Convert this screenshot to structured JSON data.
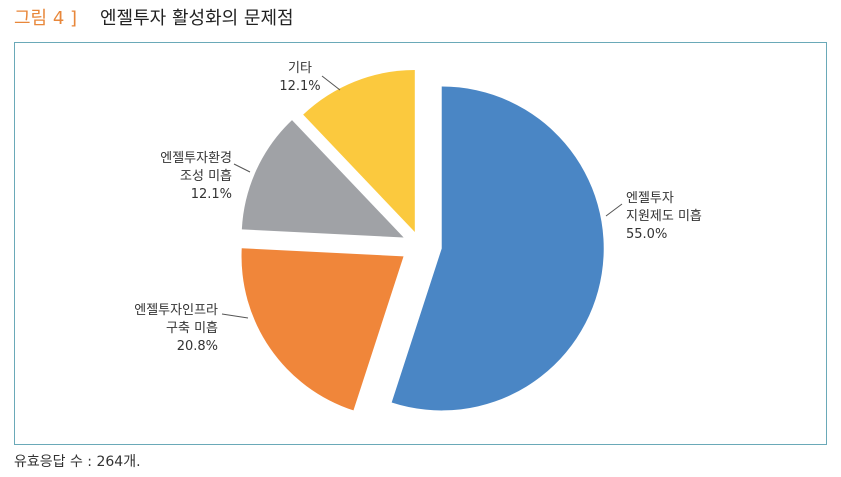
{
  "chart_data": {
    "type": "pie",
    "figure_label": "그림 4 ]",
    "title": "엔젤투자 활성화의 문제점",
    "categories": [
      "엔젤투자\n지원제도 미흡",
      "엔젤투자인프라\n구축 미흡",
      "엔젤투자환경\n조성 미흡",
      "기타"
    ],
    "values": [
      55.0,
      20.8,
      12.1,
      12.1
    ],
    "value_labels": [
      "55.0%",
      "20.8%",
      "12.1%",
      "12.1%"
    ],
    "colors": [
      "#4a86c5",
      "#f0863a",
      "#a0a2a6",
      "#fbc93e"
    ],
    "note": "유효응답 수 : 264개."
  }
}
